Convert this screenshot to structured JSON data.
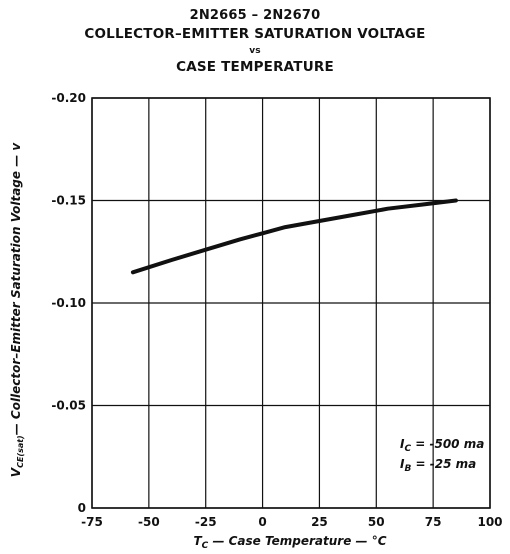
{
  "chart_data": {
    "type": "line",
    "title": "2N2665 – 2N2670",
    "subtitle": "COLLECTOR–EMITTER SATURATION VOLTAGE",
    "vs_label": "vs",
    "subtitle2": "CASE TEMPERATURE",
    "xlabel": "T_C — Case Temperature — °C",
    "ylabel": "V_CE(sat) — Collector–Emitter Saturation Voltage — v",
    "xlim": [
      -75,
      100
    ],
    "ylim": [
      0,
      -0.2
    ],
    "x_ticks": [
      "-75",
      "-50",
      "-25",
      "0",
      "25",
      "50",
      "75",
      "100"
    ],
    "y_ticks": [
      "0",
      "-0.05",
      "-0.10",
      "-0.15",
      "-0.20"
    ],
    "grid": true,
    "series": [
      {
        "x": [
          -57,
          -40,
          -25,
          -10,
          0,
          10,
          25,
          40,
          55,
          70,
          85
        ],
        "y": [
          -0.115,
          -0.121,
          -0.126,
          -0.131,
          -0.134,
          -0.137,
          -0.14,
          -0.143,
          -0.146,
          -0.148,
          -0.15
        ]
      }
    ],
    "annotations": [
      "I_C = -500 ma",
      "I_B = -25 ma"
    ]
  }
}
